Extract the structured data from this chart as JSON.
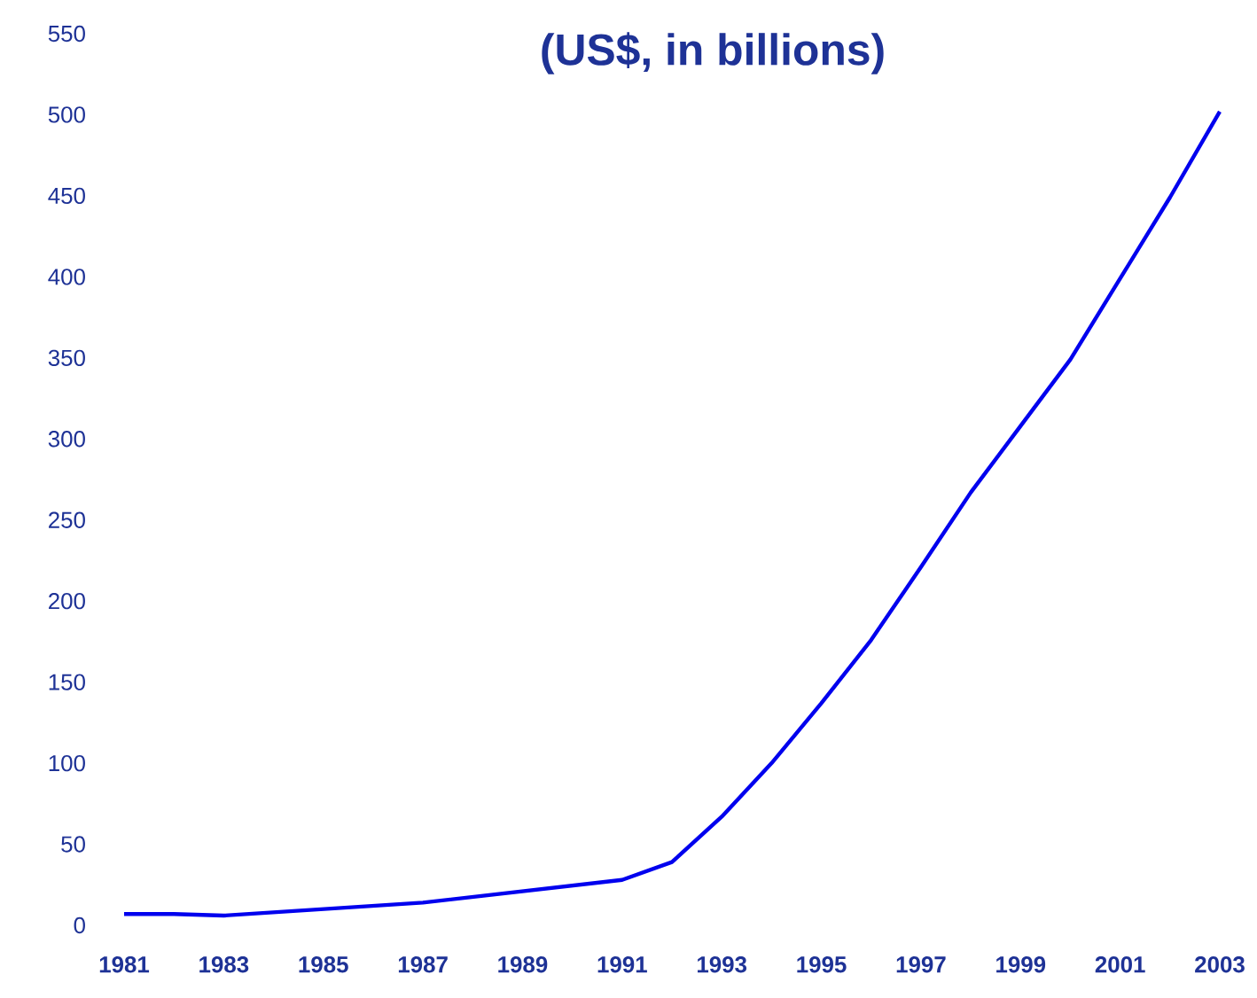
{
  "chart_data": {
    "type": "line",
    "title": "(US$, in billions)",
    "x": [
      1981,
      1982,
      1983,
      1987,
      1991,
      1992,
      1993,
      1994,
      1995,
      1996,
      1997,
      1998,
      1999,
      2000,
      2001,
      2002,
      2003
    ],
    "series": [
      {
        "color": "#0000ee",
        "values": [
          7,
          7,
          6,
          14,
          28,
          39,
          67,
          100,
          137,
          176,
          221,
          267,
          308,
          349,
          399,
          449,
          502
        ]
      }
    ],
    "xlim": [
      1981,
      2003
    ],
    "xticks": [
      1981,
      1983,
      1985,
      1987,
      1989,
      1991,
      1993,
      1995,
      1997,
      1999,
      2001,
      2003
    ],
    "ylim": [
      0,
      550
    ],
    "yticks": [
      0,
      50,
      100,
      150,
      200,
      250,
      300,
      350,
      400,
      450,
      500,
      550
    ],
    "grid": false,
    "marker": "none",
    "line_style": "solid"
  }
}
